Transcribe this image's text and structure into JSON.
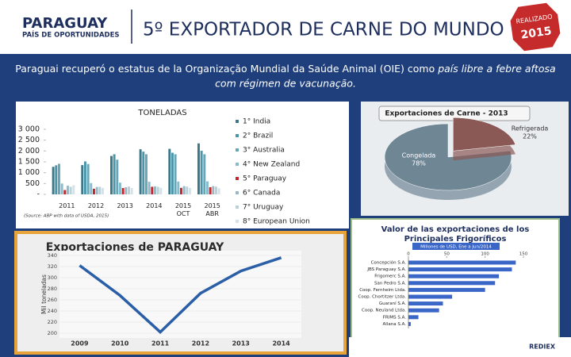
{
  "header": {
    "logo_title": "PARAGUAY",
    "logo_subtitle": "PAÍS DE OPORTUNIDADES",
    "title": "5º EXPORTADOR DE CARNE DO MUNDO",
    "badge_top": "REALIZADO",
    "badge_year": "2015"
  },
  "intro": {
    "line1": "Paraguai recuperó o estatus de la Organização Mundial da Saúde Animal (OIE) como ",
    "line1_emphasis": "país libre a febre aftosa",
    "line2": "com régimen de vacunação."
  },
  "footer": {
    "logo": "REDIEX"
  },
  "chart_data": [
    {
      "type": "bar",
      "title": "TONELADAS",
      "source": "(Source: ABP with data of USDA, 2015)",
      "categories": [
        "2011",
        "2012",
        "2013",
        "2014",
        "2015\nOCT",
        "2015\nABR"
      ],
      "ylim": [
        0,
        3000
      ],
      "yticks": [
        {
          "value": 0,
          "label": "-"
        },
        500,
        {
          "value": 1000,
          "label": "1 000"
        },
        {
          "value": 1500,
          "label": "1 500"
        },
        {
          "value": 2000,
          "label": "2 000"
        },
        {
          "value": 2500,
          "label": "2 500"
        },
        {
          "value": 3000,
          "label": "3 000"
        }
      ],
      "series": [
        {
          "name": "1° India",
          "color": "#3b7889",
          "values": [
            1270,
            1350,
            1770,
            2080,
            2100,
            2350
          ]
        },
        {
          "name": "2° Brazil",
          "color": "#4c95a9",
          "values": [
            1340,
            1520,
            1850,
            1970,
            1920,
            2010
          ]
        },
        {
          "name": "3° Australia",
          "color": "#67a6b8",
          "values": [
            1410,
            1400,
            1600,
            1850,
            1850,
            1850
          ]
        },
        {
          "name": "4° New Zealand",
          "color": "#86bccb",
          "values": [
            500,
            520,
            540,
            580,
            590,
            600
          ]
        },
        {
          "name": "5° Paraguay",
          "color": "#c0262b",
          "values": [
            200,
            260,
            290,
            350,
            300,
            330
          ]
        },
        {
          "name": "6° Canada",
          "color": "#98b7c3",
          "values": [
            400,
            340,
            330,
            370,
            380,
            380
          ]
        },
        {
          "name": "7° Uruguay",
          "color": "#b9d1da",
          "values": [
            350,
            350,
            360,
            350,
            360,
            360
          ]
        },
        {
          "name": "8° European Union",
          "color": "#d4e2e7",
          "values": [
            420,
            300,
            290,
            300,
            300,
            280
          ]
        }
      ]
    },
    {
      "type": "pie",
      "title": "Exportaciones de Carne - 2013",
      "categories": [
        "Congelada",
        "Refrigerada"
      ],
      "values": [
        78,
        22
      ],
      "value_labels": [
        "78%",
        "22%"
      ],
      "colors": [
        "#6f8695",
        "#8a5855"
      ]
    },
    {
      "type": "hbar",
      "title": [
        "Valor de las exportaciones de los",
        "Principales Frigoríficos"
      ],
      "subtitle": "Millones de USD, Ene a Jun/2014",
      "categories": [
        "Concepción S.A.",
        "JBS Paraguay S.A.",
        "Frigomerc S.A.",
        "San Pedro S.A.",
        "Coop. Fernheim Ltda.",
        "Coop. Chortitzer Ltda.",
        "Guaraní S.A.",
        "Coop. Neuland Ltda.",
        "FRIMS S.A.",
        "Allana S.A."
      ],
      "values": [
        140,
        135,
        118,
        113,
        100,
        57,
        45,
        40,
        13,
        3
      ],
      "color": "#3a66c8",
      "xlim": [
        0,
        150
      ],
      "xticks": [
        0,
        50,
        100,
        150
      ]
    },
    {
      "type": "line",
      "title": "Exportaciones de PARAGUAY",
      "ylabel": "Mil toneladas",
      "categories": [
        "2009",
        "2010",
        "2011",
        "2012",
        "2013",
        "2014"
      ],
      "values": [
        322,
        268,
        202,
        272,
        312,
        336
      ],
      "color": "#2a5fa8",
      "ylim": [
        200,
        340
      ],
      "yticks": [
        200,
        220,
        240,
        260,
        280,
        300,
        320,
        340
      ]
    }
  ]
}
